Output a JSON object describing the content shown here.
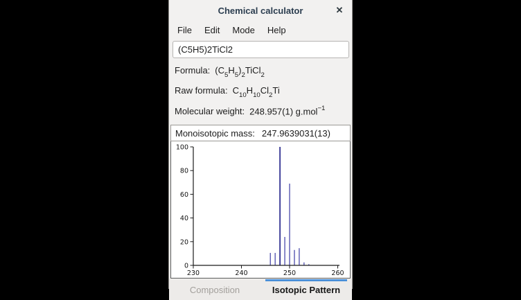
{
  "window": {
    "title": "Chemical calculator",
    "close_glyph": "✕"
  },
  "menu": {
    "items": [
      "File",
      "Edit",
      "Mode",
      "Help"
    ]
  },
  "input": {
    "value": "(C5H5)2TiCl2"
  },
  "rows": {
    "formula": {
      "label": "Formula:",
      "segments": [
        {
          "t": "(C"
        },
        {
          "t": "5",
          "s": "sub"
        },
        {
          "t": "H"
        },
        {
          "t": "5",
          "s": "sub"
        },
        {
          "t": ")"
        },
        {
          "t": "2",
          "s": "sub"
        },
        {
          "t": "TiCl"
        },
        {
          "t": "2",
          "s": "sub"
        }
      ]
    },
    "raw_formula": {
      "label": "Raw formula:",
      "segments": [
        {
          "t": "C"
        },
        {
          "t": "10",
          "s": "sub"
        },
        {
          "t": "H"
        },
        {
          "t": "10",
          "s": "sub"
        },
        {
          "t": "Cl"
        },
        {
          "t": "2",
          "s": "sub"
        },
        {
          "t": "Ti"
        }
      ]
    },
    "molecular_weight": {
      "label": "Molecular weight:",
      "segments": [
        {
          "t": "248.957(1) g.mol"
        },
        {
          "t": "−1",
          "s": "sup"
        }
      ]
    },
    "monoisotopic": {
      "label": "Monoisotopic mass:",
      "value": "247.9639031(13)"
    }
  },
  "tabs": [
    {
      "label": "Composition",
      "active": false
    },
    {
      "label": "Isotopic Pattern",
      "active": true
    }
  ],
  "chart_data": {
    "type": "bar",
    "subtype": "stick-spectrum",
    "title": "",
    "xlabel": "",
    "ylabel": "",
    "x": [
      246,
      247,
      248,
      249,
      250,
      251,
      252,
      253,
      254
    ],
    "values": [
      10.5,
      10.5,
      100,
      24,
      69,
      13,
      14.5,
      2.5,
      1
    ],
    "xlim": [
      230,
      260
    ],
    "ylim": [
      0,
      100
    ],
    "x_ticks": [
      230,
      240,
      250,
      260
    ],
    "y_ticks": [
      0,
      20,
      40,
      60,
      80,
      100
    ],
    "grid": false,
    "legend": "none",
    "stick_color": "#3b3ba4",
    "main_stick_color": "#1b1b86",
    "axis_color": "#1a1a1a"
  },
  "colors": {
    "window_bg": "#f2f1f0",
    "title_text": "#2b3d4f",
    "tab_indicator": "#4a90d9",
    "inactive_tab_text": "#a29f9b"
  }
}
